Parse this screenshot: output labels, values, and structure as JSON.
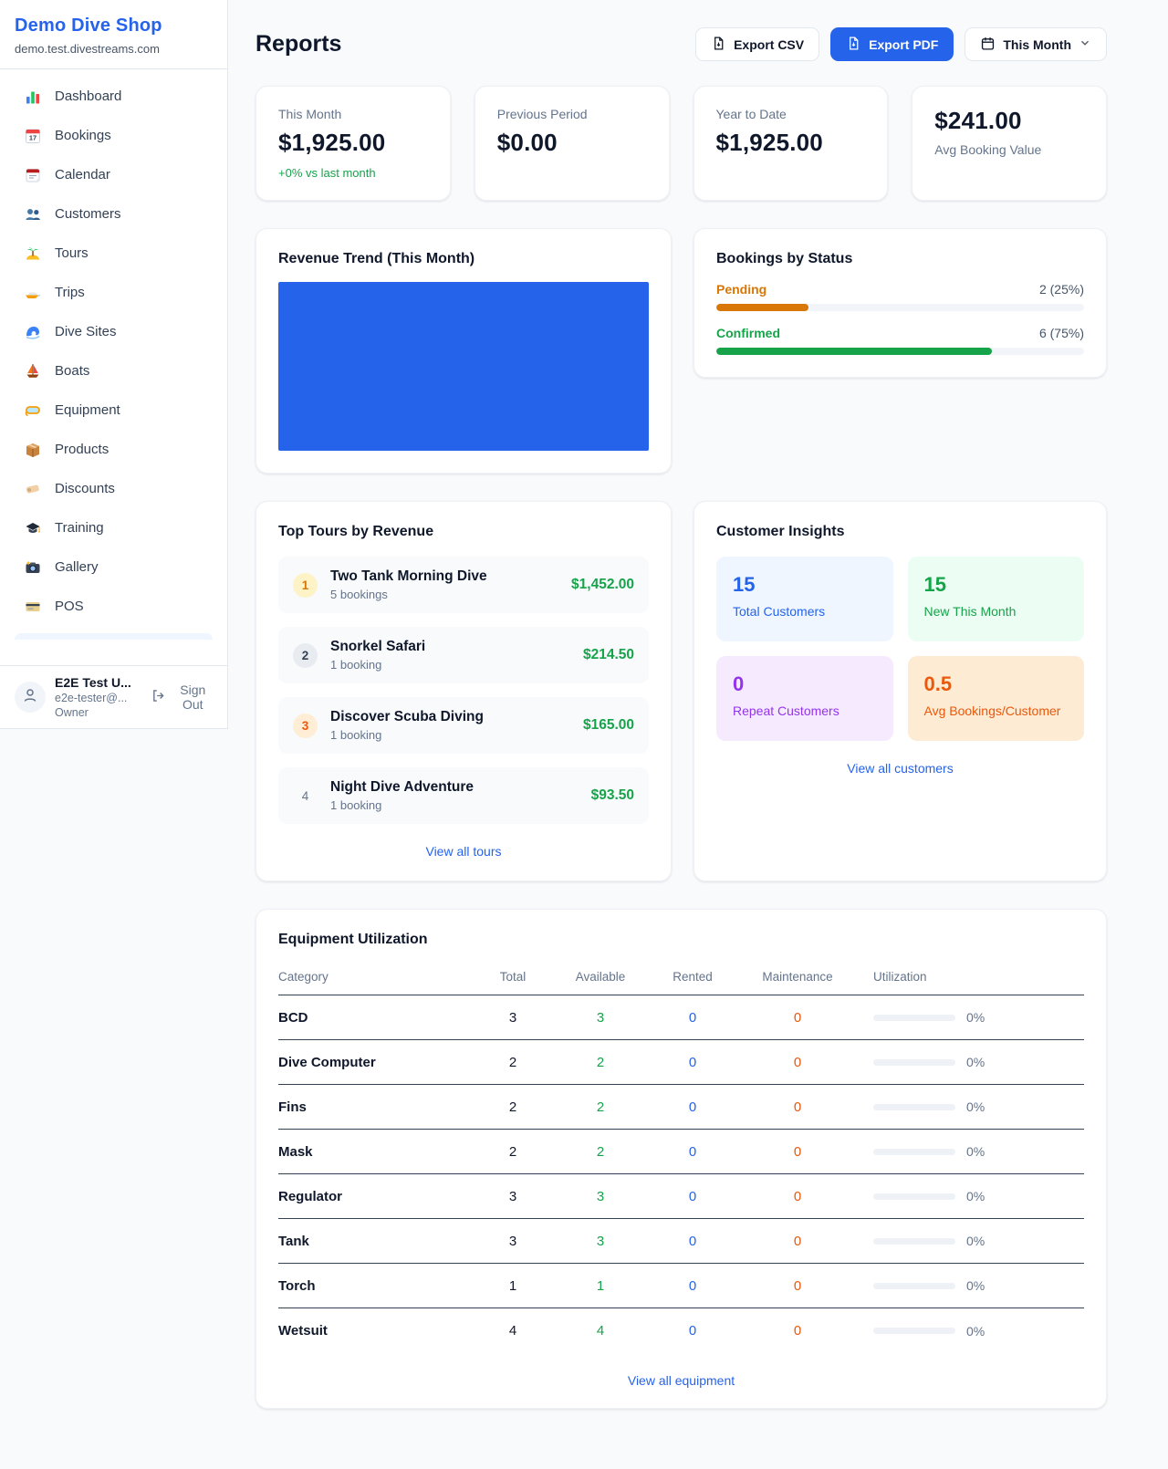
{
  "sidebar": {
    "brand": "Demo Dive Shop",
    "domain": "demo.test.divestreams.com",
    "items": [
      {
        "label": "Dashboard",
        "icon": "bar-chart-icon"
      },
      {
        "label": "Bookings",
        "icon": "calendar-17-icon"
      },
      {
        "label": "Calendar",
        "icon": "tear-calendar-icon"
      },
      {
        "label": "Customers",
        "icon": "people-icon"
      },
      {
        "label": "Tours",
        "icon": "island-icon"
      },
      {
        "label": "Trips",
        "icon": "speedboat-icon"
      },
      {
        "label": "Dive Sites",
        "icon": "wave-icon"
      },
      {
        "label": "Boats",
        "icon": "sailboat-icon"
      },
      {
        "label": "Equipment",
        "icon": "dive-mask-icon"
      },
      {
        "label": "Products",
        "icon": "package-icon"
      },
      {
        "label": "Discounts",
        "icon": "tag-icon"
      },
      {
        "label": "Training",
        "icon": "grad-cap-icon"
      },
      {
        "label": "Gallery",
        "icon": "camera-icon"
      },
      {
        "label": "POS",
        "icon": "credit-card-icon"
      }
    ],
    "user": {
      "name": "E2E Test U...",
      "email": "e2e-tester@...",
      "role": "Owner",
      "sign_out_label": "Sign Out",
      "sign_out_icon": "logout-icon",
      "avatar_icon": "person-icon"
    }
  },
  "header": {
    "title": "Reports",
    "export_csv_label": "Export CSV",
    "export_csv_icon": "file-download-icon",
    "export_pdf_label": "Export PDF",
    "export_pdf_icon": "file-download-icon",
    "period_label": "This Month",
    "period_icon": "calendar-outline-icon",
    "period_chevron_icon": "chevron-down-icon",
    "accent_color": "#2563eb"
  },
  "stats": [
    {
      "label": "This Month",
      "value": "$1,925.00",
      "delta": "+0% vs last month",
      "delta_color": "#16a34a",
      "value_first": false
    },
    {
      "label": "Previous Period",
      "value": "$0.00",
      "delta": "",
      "value_first": false
    },
    {
      "label": "Year to Date",
      "value": "$1,925.00",
      "delta": "",
      "value_first": false
    },
    {
      "label": "Avg Booking Value",
      "value": "$241.00",
      "delta": "",
      "value_first": true
    }
  ],
  "revenue_trend": {
    "title": "Revenue Trend (This Month)",
    "fill_color": "#2563eb"
  },
  "bookings_by_status": {
    "title": "Bookings by Status",
    "rows": [
      {
        "label": "Pending",
        "count": "2 (25%)",
        "pct": 25,
        "color": "#d97706"
      },
      {
        "label": "Confirmed",
        "count": "6 (75%)",
        "pct": 75,
        "color": "#16a34a"
      }
    ]
  },
  "top_tours": {
    "title": "Top Tours by Revenue",
    "rows": [
      {
        "rank": "1",
        "name": "Two Tank Morning Dive",
        "bookings": "5 bookings",
        "revenue": "$1,452.00"
      },
      {
        "rank": "2",
        "name": "Snorkel Safari",
        "bookings": "1 booking",
        "revenue": "$214.50"
      },
      {
        "rank": "3",
        "name": "Discover Scuba Diving",
        "bookings": "1 booking",
        "revenue": "$165.00"
      },
      {
        "rank": "4",
        "name": "Night Dive Adventure",
        "bookings": "1 booking",
        "revenue": "$93.50"
      }
    ],
    "link": "View all tours"
  },
  "customer_insights": {
    "title": "Customer Insights",
    "boxes": [
      {
        "value": "15",
        "label": "Total Customers",
        "color": "#2563eb",
        "bg": "#eff6ff"
      },
      {
        "value": "15",
        "label": "New This Month",
        "color": "#16a34a",
        "bg": "#ecfdf3"
      },
      {
        "value": "0",
        "label": "Repeat Customers",
        "color": "#9333ea",
        "bg": "#f6ebfe"
      },
      {
        "value": "0.5",
        "label": "Avg Bookings/Customer",
        "color": "#ea580c",
        "bg": "#fdebd3"
      }
    ],
    "link": "View all customers"
  },
  "equipment": {
    "title": "Equipment Utilization",
    "columns": [
      "Category",
      "Total",
      "Available",
      "Rented",
      "Maintenance",
      "Utilization"
    ],
    "rows": [
      {
        "category": "BCD",
        "total": "3",
        "available": "3",
        "rented": "0",
        "maintenance": "0",
        "utilization": "0%"
      },
      {
        "category": "Dive Computer",
        "total": "2",
        "available": "2",
        "rented": "0",
        "maintenance": "0",
        "utilization": "0%"
      },
      {
        "category": "Fins",
        "total": "2",
        "available": "2",
        "rented": "0",
        "maintenance": "0",
        "utilization": "0%"
      },
      {
        "category": "Mask",
        "total": "2",
        "available": "2",
        "rented": "0",
        "maintenance": "0",
        "utilization": "0%"
      },
      {
        "category": "Regulator",
        "total": "3",
        "available": "3",
        "rented": "0",
        "maintenance": "0",
        "utilization": "0%"
      },
      {
        "category": "Tank",
        "total": "3",
        "available": "3",
        "rented": "0",
        "maintenance": "0",
        "utilization": "0%"
      },
      {
        "category": "Torch",
        "total": "1",
        "available": "1",
        "rented": "0",
        "maintenance": "0",
        "utilization": "0%"
      },
      {
        "category": "Wetsuit",
        "total": "4",
        "available": "4",
        "rented": "0",
        "maintenance": "0",
        "utilization": "0%"
      }
    ],
    "link": "View all equipment"
  }
}
